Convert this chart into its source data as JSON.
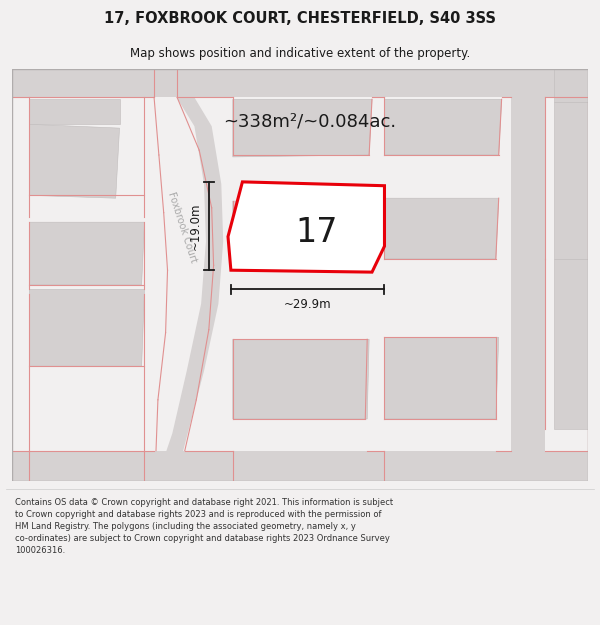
{
  "title": "17, FOXBROOK COURT, CHESTERFIELD, S40 3SS",
  "subtitle": "Map shows position and indicative extent of the property.",
  "area_label": "~338m²/~0.084ac.",
  "property_number": "17",
  "dim_width": "~29.9m",
  "dim_height": "~19.0m",
  "street_label": "Foxbrook Court",
  "footer": "Contains OS data © Crown copyright and database right 2021. This information is subject\nto Crown copyright and database rights 2023 and is reproduced with the permission of\nHM Land Registry. The polygons (including the associated geometry, namely x, y\nco-ordinates) are subject to Crown copyright and database rights 2023 Ordnance Survey\n100026316.",
  "bg_color": "#f2f0f0",
  "map_bg": "#f5f2f2",
  "road_color": "#d6d2d2",
  "building_color": "#d4d0d0",
  "highlight_color": "#e8000a",
  "highlight_fill": "#ffffff",
  "dim_color": "#1a1a1a",
  "text_color": "#1a1a1a",
  "pink_line": "#e09090",
  "street_text_color": "#aaaaaa",
  "title_fontsize": 10.5,
  "subtitle_fontsize": 8.5,
  "area_fontsize": 13,
  "number_fontsize": 24,
  "dim_fontsize": 8.5,
  "street_fontsize": 7,
  "footer_fontsize": 6.0
}
